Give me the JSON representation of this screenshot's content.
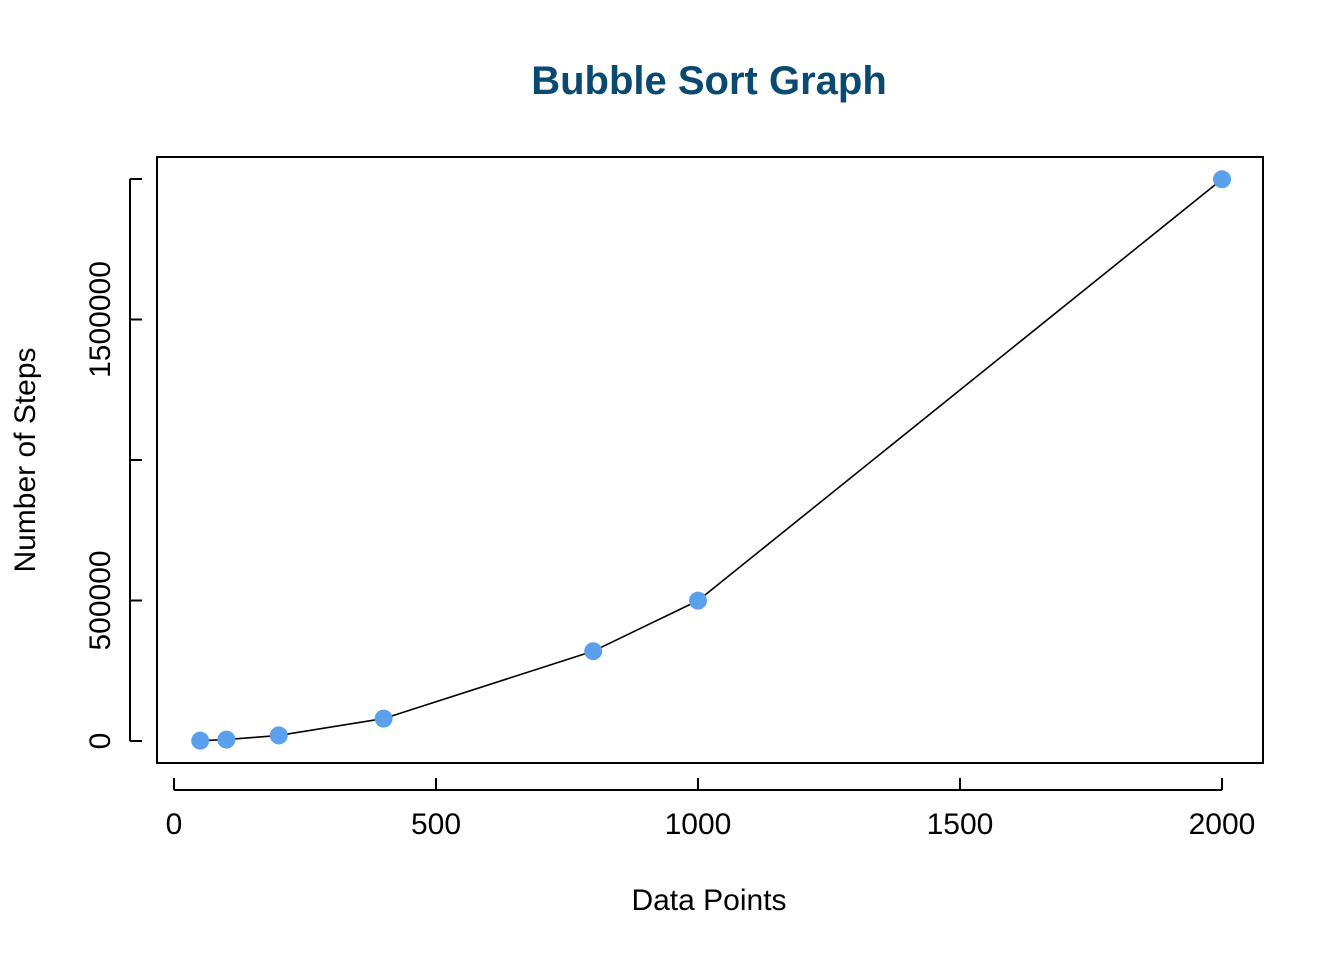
{
  "colors": {
    "title": "#0b4a70",
    "point": "#5aa0ec",
    "line": "#000000",
    "axis": "#000000",
    "background": "#ffffff"
  },
  "chart_data": {
    "type": "line",
    "title": "Bubble Sort Graph",
    "xlabel": "Data Points",
    "ylabel": "Number of Steps",
    "markers": "filled-circle",
    "grid": false,
    "legend": "none",
    "xlim": [
      0,
      2080
    ],
    "ylim": [
      0,
      2080000
    ],
    "x_ticks": [
      0,
      500,
      1000,
      1500,
      2000
    ],
    "x_tick_labels": [
      "0",
      "500",
      "1000",
      "1500",
      "2000"
    ],
    "y_ticks": [
      0,
      500000,
      1000000,
      1500000,
      2000000
    ],
    "y_tick_labels": [
      "0",
      "500000",
      "",
      "1500000",
      ""
    ],
    "series": [
      {
        "x": [
          50,
          100,
          200,
          400,
          800,
          1000,
          2000
        ],
        "y": [
          1225,
          4950,
          19900,
          79800,
          319600,
          499500,
          1999000
        ]
      }
    ]
  }
}
